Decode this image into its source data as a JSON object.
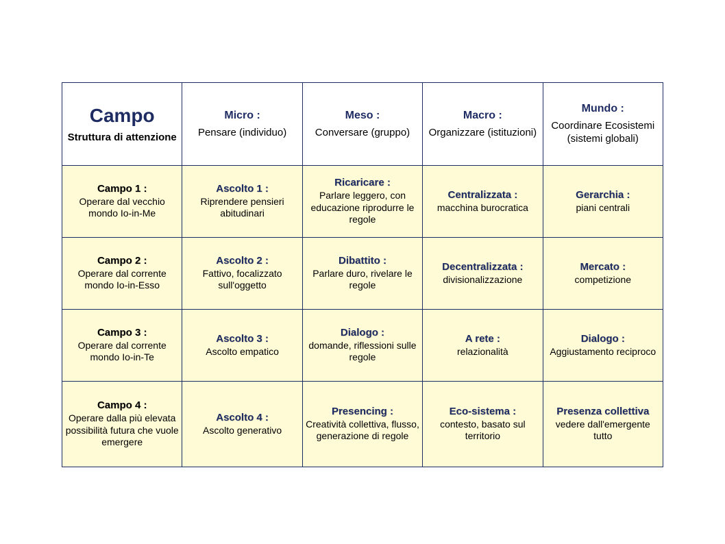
{
  "table": {
    "border_color": "#1f2c62",
    "header_bg": "#ffffff",
    "body_bg": "#fffbd6",
    "title_color": "#1f2c62",
    "text_color": "#000000",
    "columns": [
      {
        "main": "Campo",
        "sub": "Struttura di attenzione"
      },
      {
        "title": "Micro :",
        "sub": "Pensare (individuo)"
      },
      {
        "title": "Meso :",
        "sub": "Conversare (gruppo)"
      },
      {
        "title": "Macro :",
        "sub": "Organizzare (istituzioni)"
      },
      {
        "title": "Mundo :",
        "sub": "Coordinare Ecosistemi (sistemi globali)"
      }
    ],
    "rows": [
      {
        "head": {
          "title": "Campo 1 :",
          "text": "Operare dal vecchio mondo Io-in-Me"
        },
        "cells": [
          {
            "title": "Ascolto 1 :",
            "text": "Riprendere pensieri abitudinari"
          },
          {
            "title": "Ricaricare :",
            "text": "Parlare leggero, con educazione riprodurre le regole"
          },
          {
            "title": "Centralizzata :",
            "text": "macchina burocratica"
          },
          {
            "title": "Gerarchia :",
            "text": "piani centrali"
          }
        ]
      },
      {
        "head": {
          "title": "Campo 2 :",
          "text": "Operare dal corrente mondo Io-in-Esso"
        },
        "cells": [
          {
            "title": "Ascolto 2 :",
            "text": "Fattivo, focalizzato sull'oggetto"
          },
          {
            "title": "Dibattito :",
            "text": "Parlare duro, rivelare le regole"
          },
          {
            "title": "Decentralizzata :",
            "text": "divisionalizzazione"
          },
          {
            "title": "Mercato :",
            "text": "competizione"
          }
        ]
      },
      {
        "head": {
          "title": "Campo 3 :",
          "text": "Operare dal corrente mondo Io-in-Te"
        },
        "cells": [
          {
            "title": "Ascolto 3 :",
            "text": "Ascolto empatico"
          },
          {
            "title": "Dialogo :",
            "text": "domande, riflessioni sulle regole"
          },
          {
            "title": "A rete :",
            "text": "relazionalità"
          },
          {
            "title": "Dialogo :",
            "text": "Aggiustamento reciproco"
          }
        ]
      },
      {
        "head": {
          "title": "Campo 4 :",
          "text": "Operare dalla più elevata possibilità futura che vuole emergere"
        },
        "cells": [
          {
            "title": "Ascolto 4 :",
            "text": "Ascolto generativo"
          },
          {
            "title": "Presencing :",
            "text": "Creatività collettiva, flusso, generazione di regole"
          },
          {
            "title": "Eco-sistema :",
            "text": "contesto, basato sul territorio"
          },
          {
            "title": "Presenza collettiva",
            "text": "vedere dall'emergente tutto"
          }
        ]
      }
    ]
  }
}
